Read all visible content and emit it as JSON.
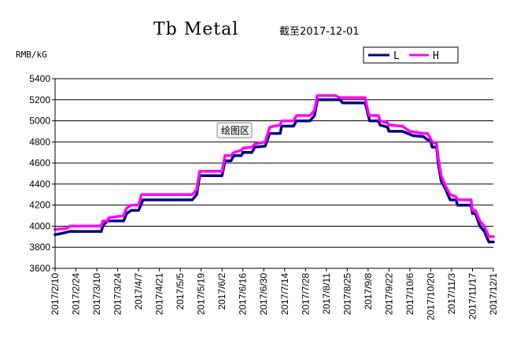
{
  "tooltip": "绘图区",
  "chart_data": {
    "type": "line",
    "title": "Tb Metal",
    "subtitle": "截至2017-12-01",
    "ylabel": "RMB/kG",
    "xlabel": "",
    "ylim": [
      3600,
      5400
    ],
    "yticks": [
      3600,
      3800,
      4000,
      4200,
      4400,
      4600,
      4800,
      5000,
      5200,
      5400
    ],
    "grid": "horizontal",
    "legend": "top-right",
    "x_dates": [
      "2017/2/10",
      "2017/2/24",
      "2017/3/10",
      "2017/3/24",
      "2017/4/7",
      "2017/4/21",
      "2017/5/5",
      "2017/5/19",
      "2017/6/2",
      "2017/6/16",
      "2017/6/30",
      "2017/7/14",
      "2017/7/28",
      "2017/8/11",
      "2017/8/25",
      "2017/9/8",
      "2017/9/22",
      "2017/10/6",
      "2017/10/20",
      "2017/11/3",
      "2017/11/17",
      "2017/12/1"
    ],
    "series": [
      {
        "name": "L",
        "color": "#000080",
        "points": [
          [
            "2017/2/10",
            3920
          ],
          [
            "2017/2/14",
            3930
          ],
          [
            "2017/2/20",
            3950
          ],
          [
            "2017/3/13",
            3950
          ],
          [
            "2017/3/14",
            4000
          ],
          [
            "2017/3/17",
            4050
          ],
          [
            "2017/3/28",
            4050
          ],
          [
            "2017/3/30",
            4120
          ],
          [
            "2017/4/2",
            4150
          ],
          [
            "2017/4/7",
            4150
          ],
          [
            "2017/4/10",
            4250
          ],
          [
            "2017/5/13",
            4250
          ],
          [
            "2017/5/16",
            4300
          ],
          [
            "2017/5/18",
            4480
          ],
          [
            "2017/6/2",
            4480
          ],
          [
            "2017/6/4",
            4620
          ],
          [
            "2017/6/8",
            4620
          ],
          [
            "2017/6/10",
            4670
          ],
          [
            "2017/6/15",
            4670
          ],
          [
            "2017/6/16",
            4700
          ],
          [
            "2017/6/22",
            4700
          ],
          [
            "2017/6/24",
            4750
          ],
          [
            "2017/7/1",
            4760
          ],
          [
            "2017/7/4",
            4880
          ],
          [
            "2017/7/11",
            4880
          ],
          [
            "2017/7/12",
            4950
          ],
          [
            "2017/7/20",
            4950
          ],
          [
            "2017/7/22",
            5000
          ],
          [
            "2017/7/31",
            5000
          ],
          [
            "2017/8/3",
            5050
          ],
          [
            "2017/8/5",
            5200
          ],
          [
            "2017/8/20",
            5200
          ],
          [
            "2017/8/22",
            5170
          ],
          [
            "2017/9/6",
            5170
          ],
          [
            "2017/9/9",
            5000
          ],
          [
            "2017/9/15",
            5000
          ],
          [
            "2017/9/16",
            4960
          ],
          [
            "2017/9/21",
            4940
          ],
          [
            "2017/9/22",
            4900
          ],
          [
            "2017/10/1",
            4900
          ],
          [
            "2017/10/8",
            4860
          ],
          [
            "2017/10/15",
            4850
          ],
          [
            "2017/10/18",
            4820
          ],
          [
            "2017/10/20",
            4810
          ],
          [
            "2017/10/21",
            4750
          ],
          [
            "2017/10/24",
            4750
          ],
          [
            "2017/10/25",
            4600
          ],
          [
            "2017/10/27",
            4430
          ],
          [
            "2017/10/30",
            4350
          ],
          [
            "2017/11/2",
            4250
          ],
          [
            "2017/11/6",
            4250
          ],
          [
            "2017/11/7",
            4200
          ],
          [
            "2017/11/16",
            4200
          ],
          [
            "2017/11/17",
            4120
          ],
          [
            "2017/11/19",
            4120
          ],
          [
            "2017/11/22",
            4000
          ],
          [
            "2017/11/25",
            3950
          ],
          [
            "2017/11/28",
            3850
          ],
          [
            "2017/12/1",
            3850
          ]
        ]
      },
      {
        "name": "H",
        "color": "#ff00ff",
        "points": [
          [
            "2017/2/10",
            3970
          ],
          [
            "2017/2/18",
            3980
          ],
          [
            "2017/2/20",
            4000
          ],
          [
            "2017/3/13",
            4000
          ],
          [
            "2017/3/14",
            4050
          ],
          [
            "2017/3/17",
            4050
          ],
          [
            "2017/3/18",
            4080
          ],
          [
            "2017/3/28",
            4100
          ],
          [
            "2017/3/30",
            4170
          ],
          [
            "2017/4/2",
            4200
          ],
          [
            "2017/4/7",
            4200
          ],
          [
            "2017/4/9",
            4300
          ],
          [
            "2017/5/13",
            4300
          ],
          [
            "2017/5/16",
            4350
          ],
          [
            "2017/5/18",
            4520
          ],
          [
            "2017/6/2",
            4520
          ],
          [
            "2017/6/4",
            4670
          ],
          [
            "2017/6/8",
            4670
          ],
          [
            "2017/6/10",
            4700
          ],
          [
            "2017/6/15",
            4720
          ],
          [
            "2017/6/16",
            4740
          ],
          [
            "2017/6/22",
            4750
          ],
          [
            "2017/6/24",
            4780
          ],
          [
            "2017/7/1",
            4800
          ],
          [
            "2017/7/4",
            4940
          ],
          [
            "2017/7/11",
            4960
          ],
          [
            "2017/7/12",
            5000
          ],
          [
            "2017/7/20",
            5000
          ],
          [
            "2017/7/22",
            5050
          ],
          [
            "2017/7/31",
            5050
          ],
          [
            "2017/8/3",
            5100
          ],
          [
            "2017/8/5",
            5240
          ],
          [
            "2017/8/17",
            5240
          ],
          [
            "2017/8/20",
            5220
          ],
          [
            "2017/9/6",
            5220
          ],
          [
            "2017/9/8",
            5080
          ],
          [
            "2017/9/9",
            5050
          ],
          [
            "2017/9/15",
            5050
          ],
          [
            "2017/9/16",
            5000
          ],
          [
            "2017/9/21",
            4980
          ],
          [
            "2017/9/22",
            4960
          ],
          [
            "2017/10/1",
            4950
          ],
          [
            "2017/10/6",
            4900
          ],
          [
            "2017/10/15",
            4880
          ],
          [
            "2017/10/18",
            4880
          ],
          [
            "2017/10/21",
            4800
          ],
          [
            "2017/10/24",
            4780
          ],
          [
            "2017/10/25",
            4650
          ],
          [
            "2017/10/27",
            4480
          ],
          [
            "2017/10/30",
            4380
          ],
          [
            "2017/11/2",
            4300
          ],
          [
            "2017/11/6",
            4280
          ],
          [
            "2017/11/7",
            4250
          ],
          [
            "2017/11/16",
            4250
          ],
          [
            "2017/11/17",
            4150
          ],
          [
            "2017/11/19",
            4150
          ],
          [
            "2017/11/22",
            4050
          ],
          [
            "2017/11/25",
            4000
          ],
          [
            "2017/11/28",
            3900
          ],
          [
            "2017/12/1",
            3900
          ]
        ]
      }
    ]
  }
}
